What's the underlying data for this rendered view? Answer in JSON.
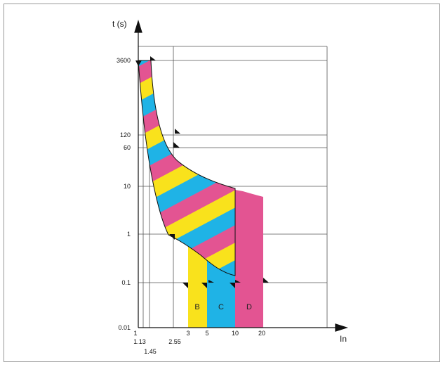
{
  "chart_data": {
    "type": "area",
    "title": "",
    "ylabel": "t (s)",
    "xlabel": "In",
    "y_ticks": [
      "3600",
      "120",
      "60",
      "10",
      "1",
      "0.1",
      "0.01"
    ],
    "x_ticks": [
      "1",
      "1.13",
      "1.45",
      "2.55",
      "3",
      "5",
      "10",
      "20"
    ],
    "curves": [
      {
        "name": "B",
        "instantaneous_trip_range": [
          3,
          5
        ]
      },
      {
        "name": "C",
        "instantaneous_trip_range": [
          5,
          10
        ]
      },
      {
        "name": "D",
        "instantaneous_trip_range": [
          10,
          20
        ]
      }
    ],
    "reference_times_s": [
      3600,
      120,
      60,
      10,
      1,
      0.1
    ],
    "reference_currents_In": [
      1.13,
      1.45,
      2.55
    ],
    "colors": {
      "yellow": "#f9e21c",
      "cyan": "#1fb3e6",
      "magenta": "#e35492"
    }
  }
}
